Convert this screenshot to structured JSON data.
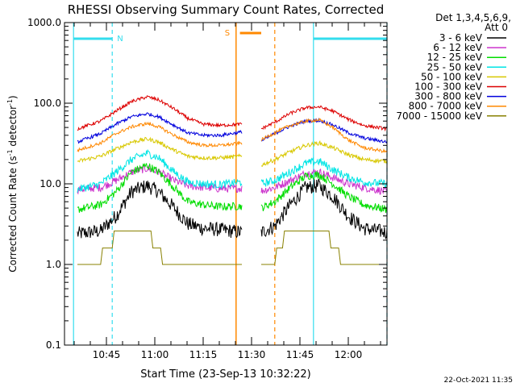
{
  "chart_data": {
    "type": "line",
    "title": "RHESSI Observing Summary Count Rates, Corrected",
    "xlabel": "Start Time (23-Sep-13 10:32:22)",
    "ylabel_main": "Corrected Count Rate (s",
    "ylabel_sup1": "-1",
    "ylabel_mid": " detector",
    "ylabel_sup2": "-1",
    "ylabel_end": ")",
    "y_scale": "log",
    "ylim": [
      0.1,
      1000
    ],
    "xlim": [
      "10:32",
      "12:12"
    ],
    "x_ticks": [
      "10:45",
      "11:00",
      "11:15",
      "11:30",
      "11:45",
      "12:00"
    ],
    "y_ticks": [
      "0.1",
      "1.0",
      "10.0",
      "100.0",
      "1000.0"
    ],
    "legend_header_1": "Det 1,3,4,5,6,9,",
    "legend_header_2": "Att 0",
    "legend_position": "right",
    "series": [
      {
        "name": "3 - 6 keV",
        "color": "#000000",
        "values_seg1": [
          [
            10.6,
            2.4
          ],
          [
            10.72,
            2.6
          ],
          [
            10.8,
            4
          ],
          [
            10.88,
            8
          ],
          [
            10.96,
            9.5
          ],
          [
            11.02,
            8
          ],
          [
            11.1,
            5
          ],
          [
            11.17,
            3.2
          ],
          [
            11.25,
            2.8
          ],
          [
            11.34,
            2.7
          ],
          [
            11.45,
            2.5
          ]
        ],
        "values_seg2": [
          [
            11.55,
            2.5
          ],
          [
            11.62,
            3
          ],
          [
            11.7,
            5.5
          ],
          [
            11.78,
            9
          ],
          [
            11.85,
            9.5
          ],
          [
            11.92,
            7
          ],
          [
            12.0,
            4
          ],
          [
            12.08,
            2.8
          ],
          [
            12.2,
            2.5
          ]
        ]
      },
      {
        "name": "6 - 12 keV",
        "color": "#cc33cc",
        "values_seg1": [
          [
            10.6,
            8.5
          ],
          [
            10.72,
            9
          ],
          [
            10.8,
            11
          ],
          [
            10.88,
            14
          ],
          [
            10.96,
            15.5
          ],
          [
            11.02,
            14
          ],
          [
            11.1,
            11
          ],
          [
            11.17,
            9.5
          ],
          [
            11.25,
            9
          ],
          [
            11.34,
            8.7
          ],
          [
            11.45,
            8.8
          ]
        ],
        "values_seg2": [
          [
            11.55,
            8.2
          ],
          [
            11.62,
            9
          ],
          [
            11.7,
            11
          ],
          [
            11.78,
            13.5
          ],
          [
            11.85,
            14
          ],
          [
            11.92,
            12
          ],
          [
            12.0,
            10
          ],
          [
            12.08,
            9
          ],
          [
            12.2,
            8
          ]
        ]
      },
      {
        "name": "12 - 25 keV",
        "color": "#00dd00",
        "values_seg1": [
          [
            10.6,
            4.8
          ],
          [
            10.72,
            5.5
          ],
          [
            10.8,
            8
          ],
          [
            10.88,
            14
          ],
          [
            10.96,
            17
          ],
          [
            11.02,
            14
          ],
          [
            11.1,
            9
          ],
          [
            11.17,
            6
          ],
          [
            11.25,
            5.5
          ],
          [
            11.34,
            5.2
          ],
          [
            11.45,
            5.3
          ]
        ],
        "values_seg2": [
          [
            11.55,
            5.0
          ],
          [
            11.62,
            6
          ],
          [
            11.7,
            9
          ],
          [
            11.78,
            12.5
          ],
          [
            11.85,
            13
          ],
          [
            11.92,
            10
          ],
          [
            12.0,
            7
          ],
          [
            12.08,
            5.5
          ],
          [
            12.2,
            4.8
          ]
        ]
      },
      {
        "name": "25 - 50 keV",
        "color": "#00e5e5",
        "values_seg1": [
          [
            10.6,
            8.5
          ],
          [
            10.72,
            10
          ],
          [
            10.8,
            14
          ],
          [
            10.88,
            20
          ],
          [
            10.96,
            24
          ],
          [
            11.02,
            21
          ],
          [
            11.1,
            14
          ],
          [
            11.17,
            10.5
          ],
          [
            11.25,
            10
          ],
          [
            11.34,
            9.8
          ],
          [
            11.45,
            10.5
          ]
        ],
        "values_seg2": [
          [
            11.55,
            10
          ],
          [
            11.62,
            11
          ],
          [
            11.7,
            14
          ],
          [
            11.78,
            18
          ],
          [
            11.85,
            19
          ],
          [
            11.92,
            15
          ],
          [
            12.0,
            12
          ],
          [
            12.08,
            10.5
          ],
          [
            12.2,
            10
          ]
        ]
      },
      {
        "name": "50 - 100 keV",
        "color": "#d8c800",
        "values_seg1": [
          [
            10.6,
            19
          ],
          [
            10.72,
            22
          ],
          [
            10.8,
            27
          ],
          [
            10.88,
            33
          ],
          [
            10.96,
            36
          ],
          [
            11.02,
            33
          ],
          [
            11.1,
            26
          ],
          [
            11.17,
            22
          ],
          [
            11.25,
            21
          ],
          [
            11.34,
            21
          ],
          [
            11.45,
            22
          ]
        ],
        "values_seg2": [
          [
            11.55,
            17
          ],
          [
            11.62,
            20
          ],
          [
            11.7,
            25
          ],
          [
            11.78,
            30
          ],
          [
            11.85,
            32
          ],
          [
            11.92,
            28
          ],
          [
            12.0,
            23
          ],
          [
            12.08,
            20
          ],
          [
            12.2,
            19
          ]
        ]
      },
      {
        "name": "100 - 300 keV",
        "color": "#dd0000",
        "values_seg1": [
          [
            10.6,
            48
          ],
          [
            10.72,
            60
          ],
          [
            10.8,
            80
          ],
          [
            10.88,
            105
          ],
          [
            10.96,
            120
          ],
          [
            11.02,
            110
          ],
          [
            11.1,
            85
          ],
          [
            11.17,
            65
          ],
          [
            11.25,
            55
          ],
          [
            11.34,
            53
          ],
          [
            11.45,
            55
          ]
        ],
        "values_seg2": [
          [
            11.55,
            48
          ],
          [
            11.62,
            58
          ],
          [
            11.7,
            75
          ],
          [
            11.78,
            88
          ],
          [
            11.85,
            90
          ],
          [
            11.92,
            80
          ],
          [
            12.0,
            63
          ],
          [
            12.08,
            53
          ],
          [
            12.2,
            48
          ]
        ]
      },
      {
        "name": "300 - 800 keV",
        "color": "#0000dd",
        "values_seg1": [
          [
            10.6,
            33
          ],
          [
            10.72,
            42
          ],
          [
            10.8,
            55
          ],
          [
            10.88,
            68
          ],
          [
            10.96,
            74
          ],
          [
            11.02,
            68
          ],
          [
            11.1,
            53
          ],
          [
            11.17,
            43
          ],
          [
            11.25,
            40
          ],
          [
            11.34,
            40
          ],
          [
            11.45,
            44
          ]
        ],
        "values_seg2": [
          [
            11.55,
            34
          ],
          [
            11.62,
            42
          ],
          [
            11.7,
            52
          ],
          [
            11.78,
            60
          ],
          [
            11.85,
            61
          ],
          [
            11.92,
            54
          ],
          [
            12.0,
            43
          ],
          [
            12.08,
            37
          ],
          [
            12.2,
            33
          ]
        ]
      },
      {
        "name": "800 - 7000 keV",
        "color": "#ff8800",
        "values_seg1": [
          [
            10.6,
            26
          ],
          [
            10.72,
            32
          ],
          [
            10.8,
            42
          ],
          [
            10.88,
            51
          ],
          [
            10.96,
            56
          ],
          [
            11.02,
            51
          ],
          [
            11.1,
            40
          ],
          [
            11.17,
            33
          ],
          [
            11.25,
            30
          ],
          [
            11.34,
            30
          ],
          [
            11.45,
            32
          ]
        ],
        "values_seg2": [
          [
            11.55,
            35
          ],
          [
            11.62,
            43
          ],
          [
            11.7,
            53
          ],
          [
            11.78,
            60
          ],
          [
            11.85,
            62
          ],
          [
            11.92,
            50
          ],
          [
            12.0,
            35
          ],
          [
            12.08,
            28
          ],
          [
            12.2,
            25
          ]
        ]
      },
      {
        "name": "7000 - 15000 keV",
        "color": "#888000",
        "values_seg1": [
          [
            10.6,
            1.0
          ],
          [
            10.72,
            1.0
          ],
          [
            10.73,
            1.6
          ],
          [
            10.78,
            1.6
          ],
          [
            10.79,
            2.6
          ],
          [
            10.98,
            2.6
          ],
          [
            10.99,
            1.6
          ],
          [
            11.03,
            1.6
          ],
          [
            11.04,
            1.0
          ],
          [
            11.45,
            1.0
          ]
        ],
        "values_seg2": [
          [
            11.55,
            1.0
          ],
          [
            11.62,
            1.0
          ],
          [
            11.63,
            1.6
          ],
          [
            11.66,
            1.6
          ],
          [
            11.67,
            2.6
          ],
          [
            11.9,
            2.6
          ],
          [
            11.91,
            1.6
          ],
          [
            11.95,
            1.6
          ],
          [
            11.96,
            1.0
          ],
          [
            12.2,
            1.0
          ]
        ]
      }
    ],
    "annotations": {
      "night_label": "N",
      "saa_label": "S",
      "night_bars": [
        [
          10.58,
          10.78
        ],
        [
          11.82,
          12.2
        ]
      ],
      "night_edges": [
        10.58,
        10.78,
        11.82,
        12.2
      ],
      "saa_lines": [
        11.42,
        11.62
      ],
      "saa_bar": [
        11.44,
        11.55
      ]
    },
    "footer": "22-Oct-2021 11:35"
  }
}
